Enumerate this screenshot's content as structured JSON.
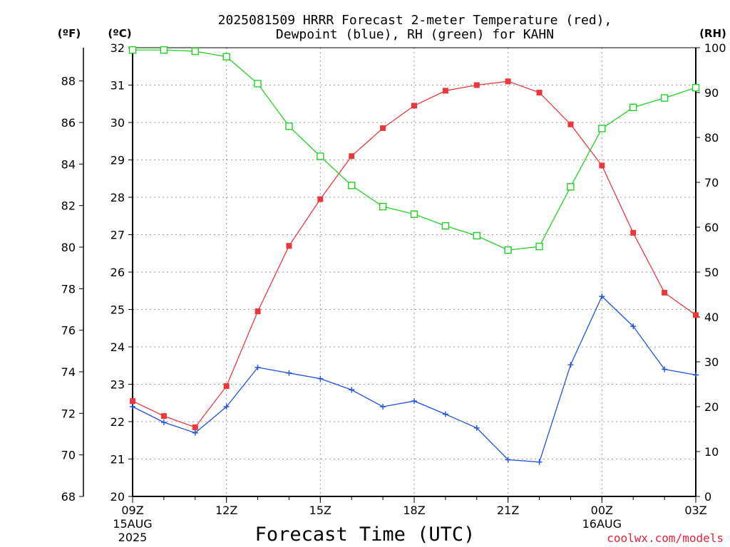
{
  "chart_data": {
    "type": "line",
    "title_line1": "2025081509 HRRR Forecast 2-meter Temperature (red),",
    "title_line2": "Dewpoint (blue), RH (green) for KAHN",
    "left_unit_f": "(ºF)",
    "left_unit_c": "(ºC)",
    "right_unit": "(RH)",
    "xlabel": "Forecast Time (UTC)",
    "credit": "coolwx.com/models",
    "x_hours": [
      9,
      10,
      11,
      12,
      13,
      14,
      15,
      16,
      17,
      18,
      19,
      20,
      21,
      22,
      23,
      24,
      25,
      26,
      27
    ],
    "x_ticks": [
      {
        "hour": 9,
        "label": "09Z",
        "sub1": "15AUG",
        "sub2": "2025"
      },
      {
        "hour": 12,
        "label": "12Z",
        "sub1": "",
        "sub2": ""
      },
      {
        "hour": 15,
        "label": "15Z",
        "sub1": "",
        "sub2": ""
      },
      {
        "hour": 18,
        "label": "18Z",
        "sub1": "",
        "sub2": ""
      },
      {
        "hour": 21,
        "label": "21Z",
        "sub1": "",
        "sub2": ""
      },
      {
        "hour": 24,
        "label": "00Z",
        "sub1": "16AUG",
        "sub2": ""
      },
      {
        "hour": 27,
        "label": "03Z",
        "sub1": "",
        "sub2": ""
      }
    ],
    "celsius_axis": {
      "min": 20,
      "max": 32,
      "ticks": [
        20,
        21,
        22,
        23,
        24,
        25,
        26,
        27,
        28,
        29,
        30,
        31,
        32
      ]
    },
    "fahrenheit_ticks": [
      68,
      70,
      72,
      74,
      76,
      78,
      80,
      82,
      84,
      86,
      88
    ],
    "rh_axis": {
      "min": 0,
      "max": 100,
      "ticks": [
        0,
        10,
        20,
        30,
        40,
        50,
        60,
        70,
        80,
        90,
        100
      ]
    },
    "grid": true,
    "series": [
      {
        "name": "Temperature",
        "color": "#e8383c",
        "axis": "celsius",
        "marker": "filled-square",
        "values": [
          22.55,
          22.15,
          21.85,
          22.95,
          24.95,
          26.7,
          27.95,
          29.1,
          29.85,
          30.45,
          30.85,
          31.0,
          31.1,
          30.8,
          29.95,
          28.85,
          27.05,
          25.45,
          24.85
        ]
      },
      {
        "name": "Dewpoint",
        "color": "#2050e0",
        "axis": "celsius",
        "marker": "plus",
        "values": [
          22.4,
          21.98,
          21.7,
          22.4,
          23.45,
          23.3,
          23.15,
          22.85,
          22.4,
          22.55,
          22.2,
          21.83,
          20.98,
          20.92,
          23.52,
          25.35,
          24.55,
          23.4,
          23.25
        ]
      },
      {
        "name": "RH",
        "color": "#22d022",
        "axis": "rh",
        "marker": "open-square",
        "values": [
          99.5,
          99.5,
          99.2,
          98.0,
          92.0,
          82.5,
          75.8,
          69.3,
          64.6,
          62.9,
          60.3,
          58.1,
          54.9,
          55.7,
          69.0,
          82.0,
          86.7,
          88.8,
          91.1
        ]
      }
    ]
  }
}
